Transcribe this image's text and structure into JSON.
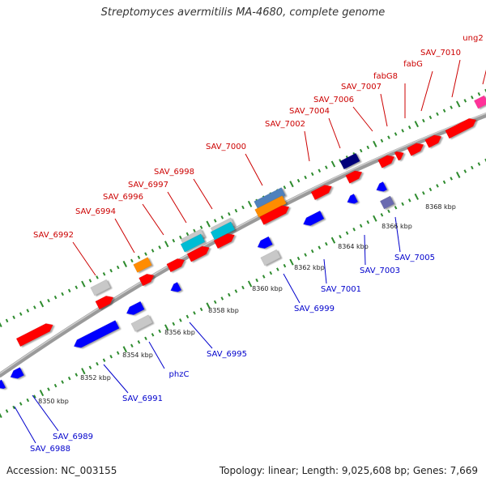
{
  "title": "Streptomyces avermitilis MA-4680, complete genome",
  "footer": {
    "accession": "Accession: NC_003155",
    "topology": "Topology: linear; Length: 9,025,608 bp; Genes: 7,669"
  },
  "colors": {
    "backbone": "#9a9a9a",
    "tick": "#2e8b2e",
    "forward_label": "#cc0000",
    "reverse_label": "#0000cc",
    "gene_red": "#ff0000",
    "gene_blue": "#0000ff",
    "gene_orange": "#ff8c00",
    "gene_gray": "#c8c8c8",
    "gene_steelblue": "#4f81bd",
    "gene_cyan": "#00bcd4",
    "gene_navy": "#00007a",
    "gene_slate": "#6b6bb0",
    "gene_pink": "#ff3399"
  },
  "scale_labels": [
    "8350 kbp",
    "8352 kbp",
    "8354 kbp",
    "8356 kbp",
    "8358 kbp",
    "8360 kbp",
    "8362 kbp",
    "8364 kbp",
    "8366 kbp",
    "8368 kbp"
  ],
  "forward_genes": [
    "SAV_6992",
    "SAV_6994",
    "SAV_6996",
    "SAV_6997",
    "SAV_6998",
    "SAV_7000",
    "SAV_7002",
    "SAV_7004",
    "SAV_7006",
    "SAV_7007",
    "fabG8",
    "fabG",
    "SAV_7010",
    "ung2"
  ],
  "reverse_genes": [
    "SAV_6988",
    "SAV_6989",
    "SAV_6991",
    "phzC",
    "SAV_6995",
    "SAV_6999",
    "SAV_7001",
    "SAV_7003",
    "SAV_7005"
  ]
}
